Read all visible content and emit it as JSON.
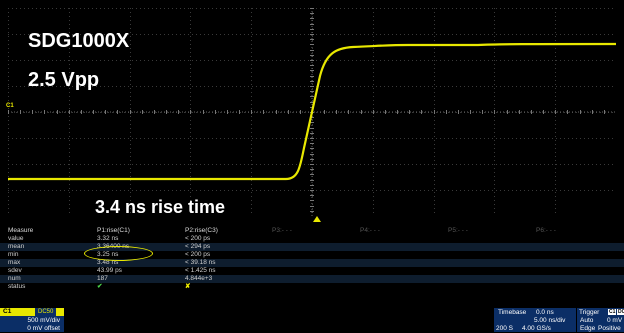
{
  "overlay": {
    "title": "SDG1000X",
    "amplitude": "2.5 Vpp",
    "rise_caption": "3.4 ns rise time",
    "channel_marker": "C1"
  },
  "trace_color": "#e8e800",
  "measure": {
    "headers": [
      "Measure",
      "P1:rise(C1)",
      "P2:rise(C3)",
      "P3:- - -",
      "P4:- - -",
      "P5:- - -",
      "P6:- - -"
    ],
    "rows": [
      {
        "label": "value",
        "p1": "3.32 ns",
        "p2": "< 200 ps"
      },
      {
        "label": "mean",
        "p1": "3.36400 ns",
        "p2": "< 294 ps"
      },
      {
        "label": "min",
        "p1": "3.25 ns",
        "p2": "< 200 ps"
      },
      {
        "label": "max",
        "p1": "3.48 ns",
        "p2": "< 39.18 ns"
      },
      {
        "label": "sdev",
        "p1": "43.99 ps",
        "p2": "< 1.425 ns"
      },
      {
        "label": "num",
        "p1": "187",
        "p2": "4.844e+3"
      },
      {
        "label": "status",
        "p1": "✔",
        "p2": "✘"
      }
    ]
  },
  "channel": {
    "label": "C1",
    "coupling": "DC50",
    "vdiv": "500 mV/div",
    "offset": "0 mV offset"
  },
  "timebase": {
    "label": "Timebase",
    "delay": "0.0 ns",
    "tdiv": "5.00 ns/div",
    "samples": "200 S",
    "rate": "4.00 GS/s"
  },
  "trigger": {
    "label": "Trigger",
    "channel": "C1",
    "coupling": "DC",
    "mode": "Auto",
    "level": "0 mV",
    "type": "Edge",
    "slope": "Positive"
  }
}
